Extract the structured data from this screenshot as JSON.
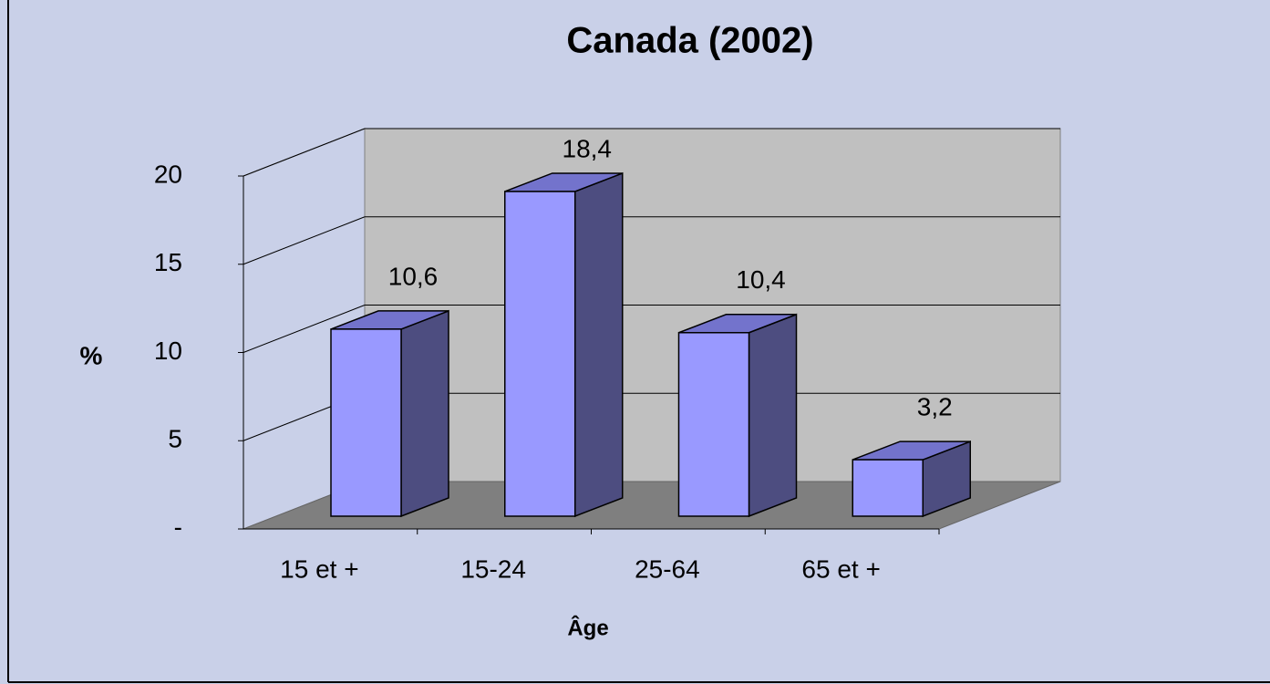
{
  "chart_data": {
    "type": "bar3d",
    "title": "Canada (2002)",
    "categories": [
      "15 et +",
      "15-24",
      "25-64",
      "65 et +"
    ],
    "values": [
      10.6,
      18.4,
      10.4,
      3.2
    ],
    "value_labels": [
      "10,6",
      "18,4",
      "10,4",
      "3,2"
    ],
    "color": "#9999ff",
    "ylim": [
      0,
      20
    ],
    "yticks": [
      {
        "value": 0,
        "label": "-"
      },
      5,
      10,
      15,
      20
    ],
    "y_label": "%",
    "x_label": "Âge",
    "grid": true
  }
}
